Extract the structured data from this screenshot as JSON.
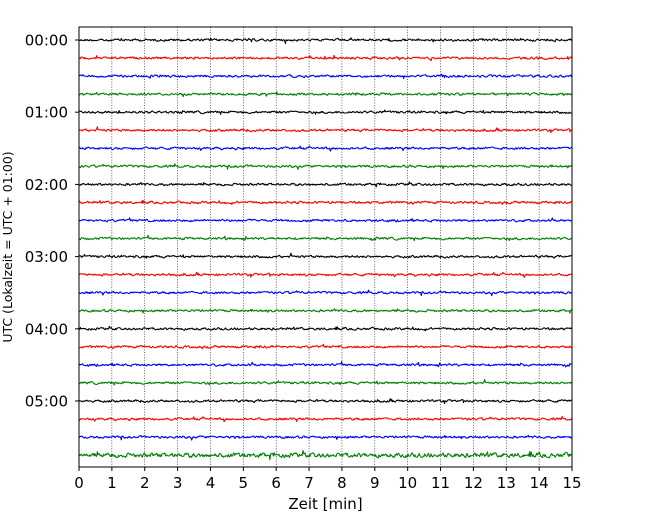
{
  "chart_data": {
    "type": "line",
    "title": "",
    "xlabel": "Zeit  [min]",
    "ylabel": "UTC (Lokalzeit = UTC + 01:00)",
    "xlim": [
      0,
      15
    ],
    "x_ticks": [
      0,
      1,
      2,
      3,
      4,
      5,
      6,
      7,
      8,
      9,
      10,
      11,
      12,
      13,
      14,
      15
    ],
    "grid": "vertical dotted lines at each minute",
    "y_tick_labels": [
      "00:00",
      "01:00",
      "02:00",
      "03:00",
      "04:00",
      "05:00"
    ],
    "traces_per_hour": 4,
    "trace_minutes": 15,
    "colors": [
      "#000000",
      "#ff0000",
      "#0000ff",
      "#008000"
    ],
    "trace_count": 24,
    "series": [
      {
        "start": "00:00"
      },
      {
        "start": "00:15"
      },
      {
        "start": "00:30"
      },
      {
        "start": "00:45"
      },
      {
        "start": "01:00"
      },
      {
        "start": "01:15"
      },
      {
        "start": "01:30"
      },
      {
        "start": "01:45"
      },
      {
        "start": "02:00"
      },
      {
        "start": "02:15"
      },
      {
        "start": "02:30"
      },
      {
        "start": "02:45"
      },
      {
        "start": "03:00"
      },
      {
        "start": "03:15"
      },
      {
        "start": "03:30"
      },
      {
        "start": "03:45"
      },
      {
        "start": "04:00"
      },
      {
        "start": "04:15"
      },
      {
        "start": "04:30"
      },
      {
        "start": "04:45"
      },
      {
        "start": "05:00"
      },
      {
        "start": "05:15"
      },
      {
        "start": "05:30"
      },
      {
        "start": "05:45"
      }
    ]
  }
}
